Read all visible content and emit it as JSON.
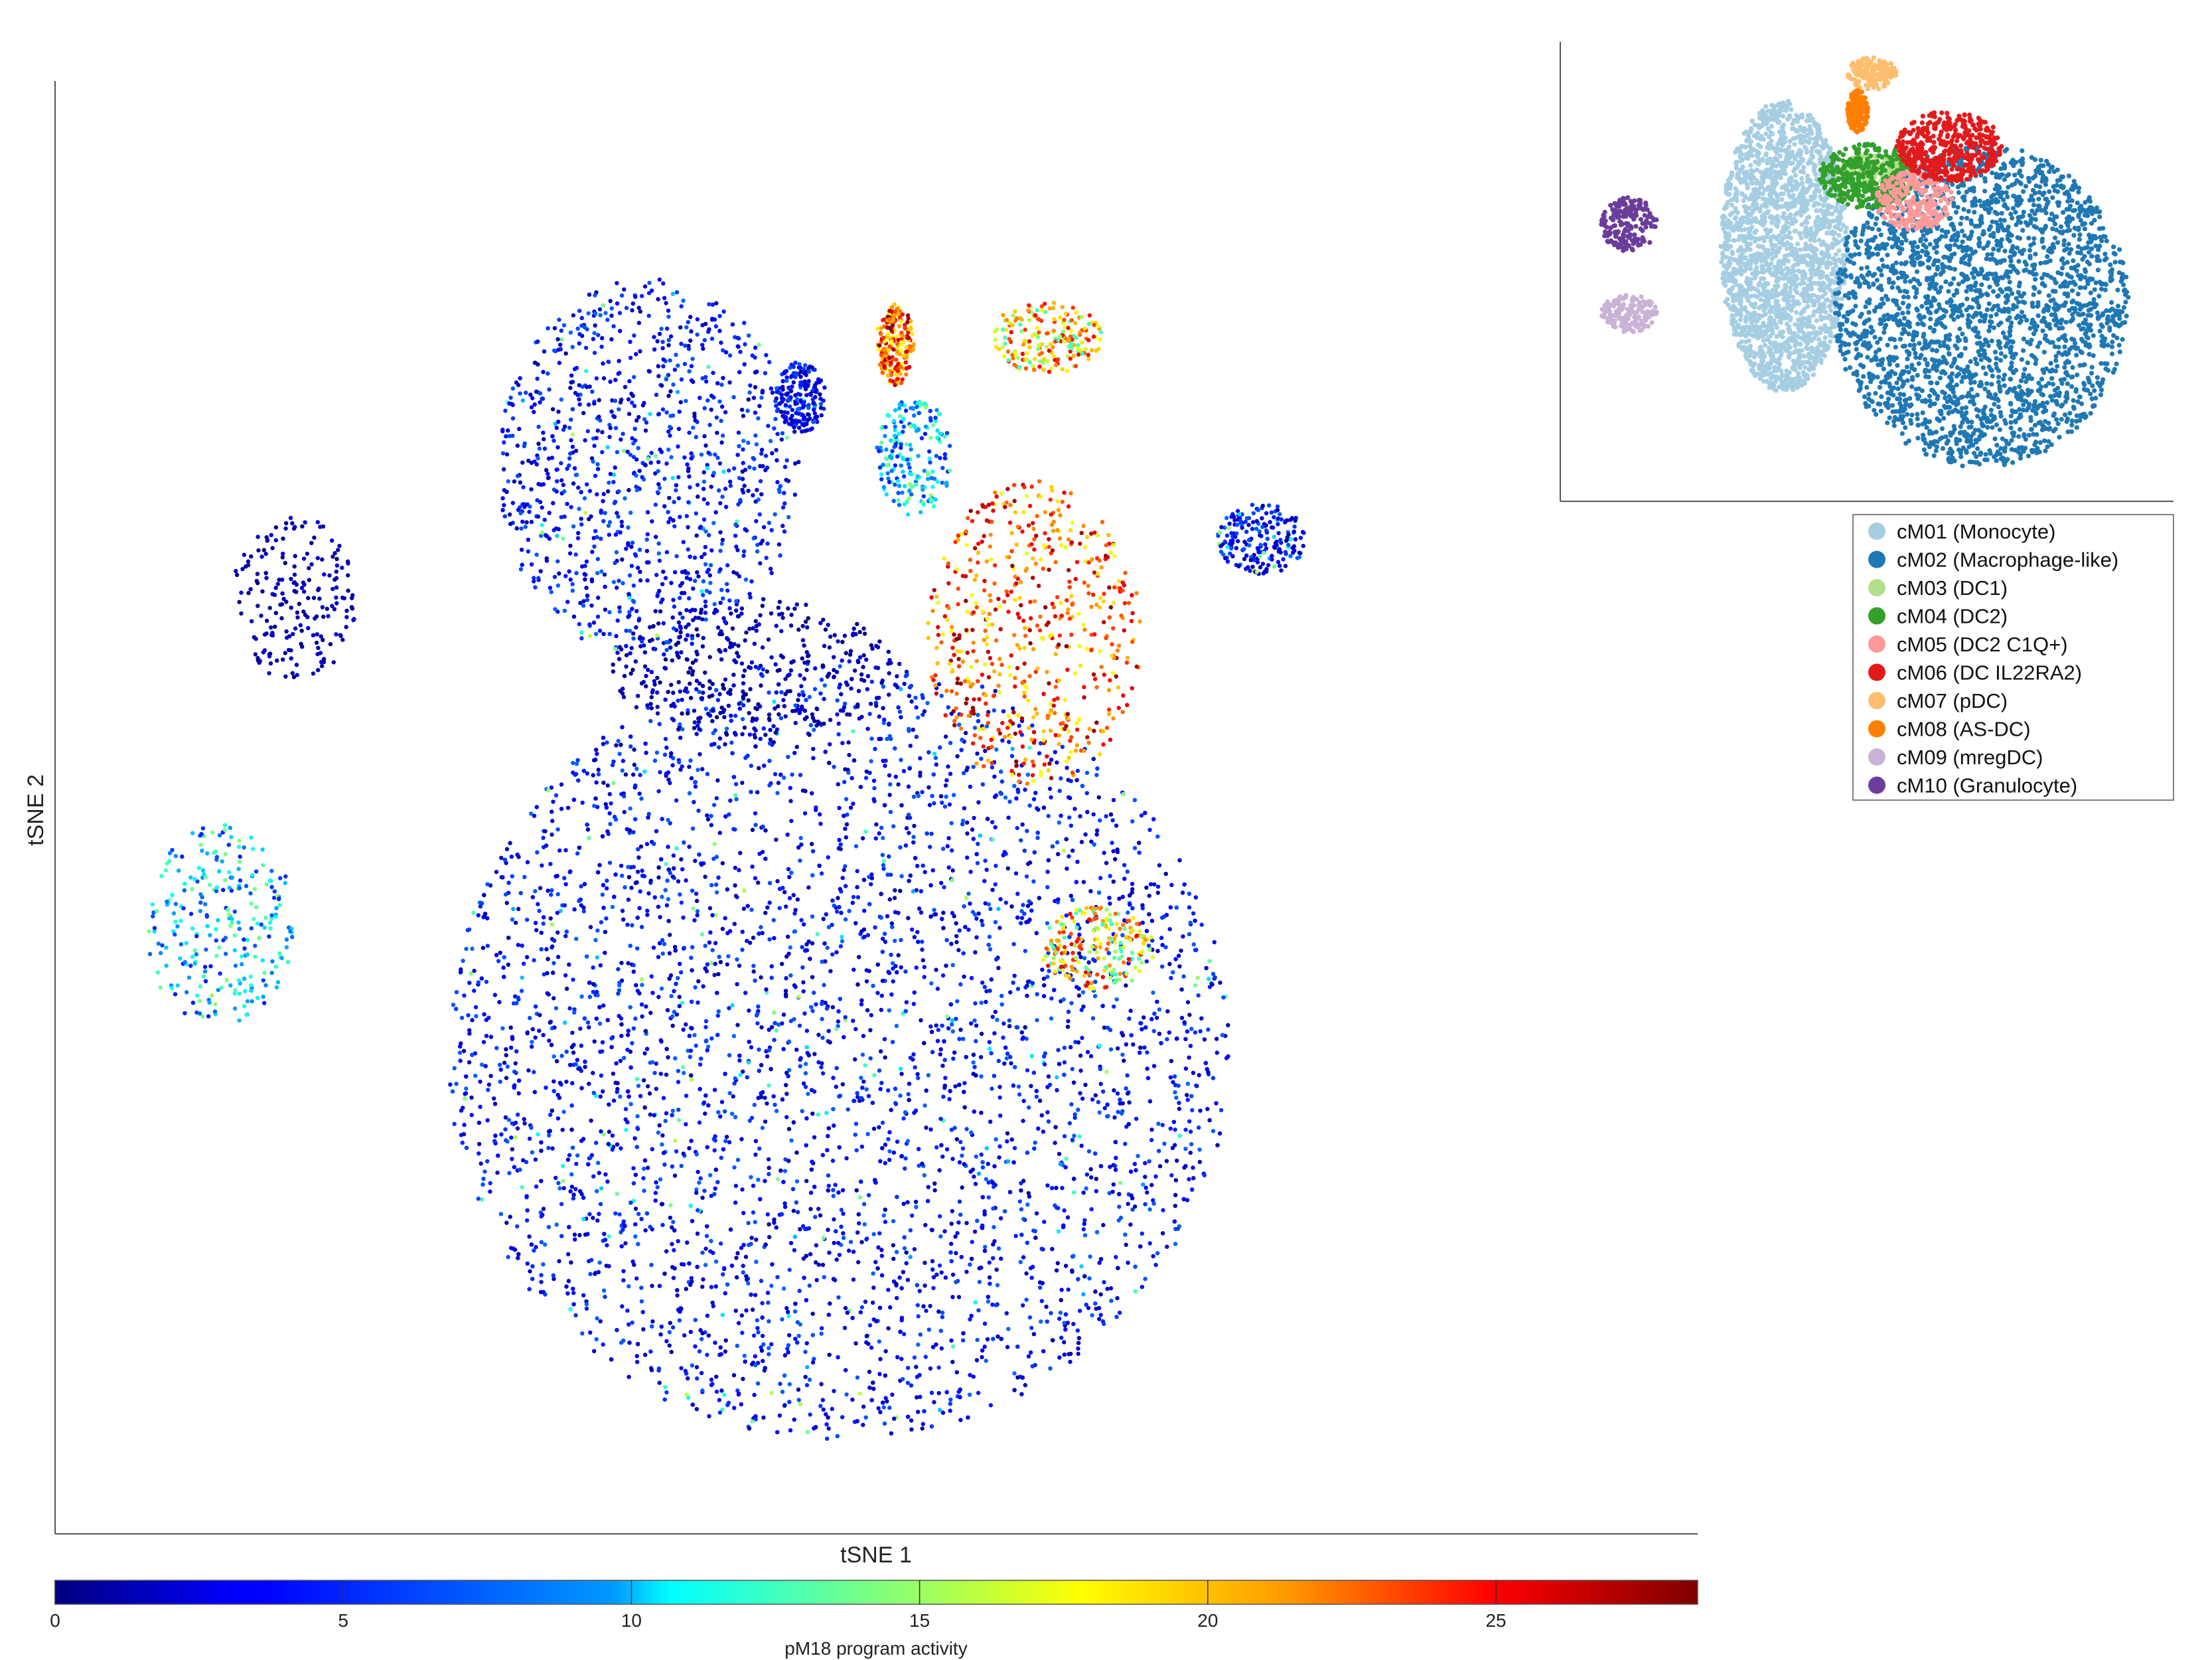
{
  "chart_data": [
    {
      "type": "scatter",
      "title": "",
      "xlabel": "tSNE 1",
      "ylabel": "tSNE 2",
      "color_variable": "pM18 program activity",
      "colormap": "jet",
      "color_range": [
        0,
        28.5
      ],
      "colorbar_ticks": [
        0,
        5,
        10,
        15,
        20,
        25
      ],
      "colorbar_tick_labels": [
        "0",
        "5",
        "10",
        "15",
        "20",
        "25"
      ],
      "colorbar_label": "pM18 program activity",
      "grid": false,
      "regions": [
        {
          "x": [
            -1.8,
            1.3
          ],
          "y": [
            -2.8,
            0.5
          ],
          "activity": "low"
        },
        {
          "x": [
            0.55,
            1.0
          ],
          "y": [
            -0.9,
            -0.55
          ],
          "activity": "high"
        },
        {
          "x": [
            -1.15,
            0.0
          ],
          "y": [
            0.15,
            0.75
          ],
          "activity": "very low"
        },
        {
          "x": [
            -1.6,
            -0.4
          ],
          "y": [
            0.5,
            2.1
          ],
          "activity": "low"
        },
        {
          "x": [
            -0.5,
            -0.3
          ],
          "y": [
            1.45,
            1.75
          ],
          "activity": "low"
        },
        {
          "x": [
            -0.1,
            0.2
          ],
          "y": [
            1.1,
            1.6
          ],
          "activity": "medium"
        },
        {
          "x": [
            -0.1,
            0.05
          ],
          "y": [
            1.65,
            2.0
          ],
          "activity": "very high"
        },
        {
          "x": [
            0.35,
            0.8
          ],
          "y": [
            1.7,
            2.0
          ],
          "activity": "high"
        },
        {
          "x": [
            1.25,
            1.6
          ],
          "y": [
            0.85,
            1.15
          ],
          "activity": "low"
        },
        {
          "x": [
            0.1,
            0.95
          ],
          "y": [
            -0.05,
            1.25
          ],
          "activity": "very high"
        },
        {
          "x": [
            -3.0,
            -2.4
          ],
          "y": [
            -1.05,
            -0.2
          ],
          "activity": "medium"
        },
        {
          "x": [
            -2.65,
            -2.15
          ],
          "y": [
            0.4,
            1.1
          ],
          "activity": "very low"
        }
      ]
    },
    {
      "type": "scatter",
      "title": "",
      "color_variable": "cluster",
      "legend_position": "right",
      "legend": [
        {
          "label": "cM01 (Monocyte)",
          "color": "#a6cee3"
        },
        {
          "label": "cM02 (Macrophage-like)",
          "color": "#1f78b4"
        },
        {
          "label": "cM03 (DC1)",
          "color": "#b2df8a"
        },
        {
          "label": "cM04 (DC2)",
          "color": "#33a02c"
        },
        {
          "label": "cM05 (DC2 C1Q+)",
          "color": "#fb9a99"
        },
        {
          "label": "cM06 (DC IL22RA2)",
          "color": "#e31a1c"
        },
        {
          "label": "cM07 (pDC)",
          "color": "#fdbf6f"
        },
        {
          "label": "cM08 (AS-DC)",
          "color": "#ff7f00"
        },
        {
          "label": "cM09 (mregDC)",
          "color": "#cab2d6"
        },
        {
          "label": "cM10 (Granulocyte)",
          "color": "#6a3d9a"
        }
      ],
      "clusters": [
        {
          "label": "cM01 (Monocyte)",
          "x": [
            -1.3,
            -0.4
          ],
          "y": [
            -0.5,
            2.2
          ]
        },
        {
          "label": "cM02 (Macrophage-like)",
          "x": [
            -0.5,
            1.6
          ],
          "y": [
            -1.2,
            1.8
          ]
        },
        {
          "label": "cM03 (DC1)",
          "x": [
            -0.45,
            0.0
          ],
          "y": [
            1.4,
            1.7
          ]
        },
        {
          "label": "cM04 (DC2)",
          "x": [
            -0.6,
            0.1
          ],
          "y": [
            1.2,
            1.8
          ]
        },
        {
          "label": "cM05 (DC2 C1Q+)",
          "x": [
            -0.2,
            0.35
          ],
          "y": [
            1.0,
            1.55
          ]
        },
        {
          "label": "cM06 (DC IL22RA2)",
          "x": [
            -0.05,
            0.7
          ],
          "y": [
            1.45,
            2.1
          ]
        },
        {
          "label": "cM07 (pDC)",
          "x": [
            -0.4,
            -0.05
          ],
          "y": [
            2.3,
            2.6
          ]
        },
        {
          "label": "cM08 (AS-DC)",
          "x": [
            -0.4,
            -0.25
          ],
          "y": [
            1.9,
            2.3
          ]
        },
        {
          "label": "cM09 (mregDC)",
          "x": [
            -2.15,
            -1.75
          ],
          "y": [
            0.05,
            0.4
          ]
        },
        {
          "label": "cM10 (Granulocyte)",
          "x": [
            -2.15,
            -1.75
          ],
          "y": [
            0.8,
            1.3
          ]
        }
      ]
    }
  ]
}
